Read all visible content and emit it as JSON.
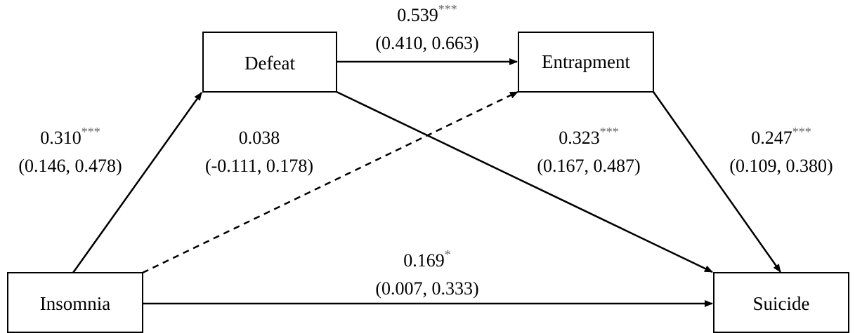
{
  "nodes": {
    "insomnia": {
      "label": "Insomnia"
    },
    "defeat": {
      "label": "Defeat"
    },
    "entrapment": {
      "label": "Entrapment"
    },
    "suicide": {
      "label": "Suicide"
    }
  },
  "paths": {
    "insomnia_defeat": {
      "coef": "0.310",
      "sig": "***",
      "ci": "(0.146, 0.478)",
      "style": "solid"
    },
    "insomnia_entrapment": {
      "coef": "0.038",
      "sig": "",
      "ci": "(-0.111, 0.178)",
      "style": "dashed"
    },
    "defeat_entrapment": {
      "coef": "0.539",
      "sig": "***",
      "ci": "(0.410, 0.663)",
      "style": "solid"
    },
    "defeat_suicide": {
      "coef": "0.323",
      "sig": "***",
      "ci": "(0.167, 0.487)",
      "style": "solid"
    },
    "entrapment_suicide": {
      "coef": "0.247",
      "sig": "***",
      "ci": "(0.109, 0.380)",
      "style": "solid"
    },
    "insomnia_suicide": {
      "coef": "0.169",
      "sig": "*",
      "ci": "(0.007, 0.333)",
      "style": "solid"
    }
  },
  "colors": {
    "line": "#000000",
    "significance_marker": "#666666"
  }
}
